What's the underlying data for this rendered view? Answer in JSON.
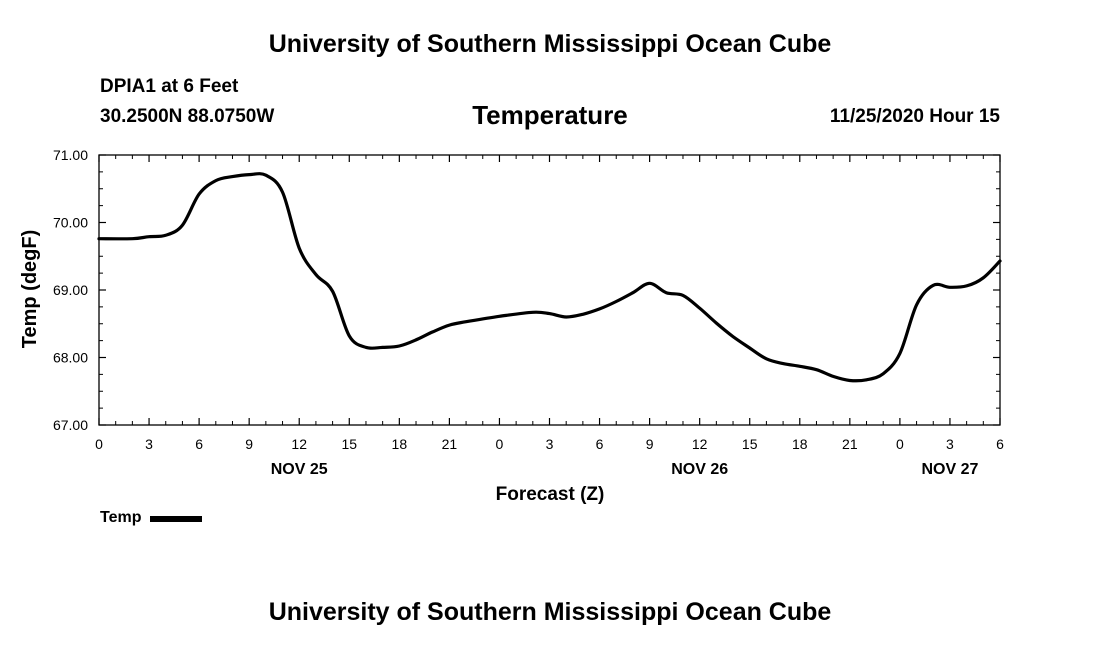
{
  "header": {
    "title": "University of Southern Mississippi Ocean Cube",
    "station": "DPIA1 at 6 Feet",
    "coords": "30.2500N 88.0750W",
    "datetime": "11/25/2020 Hour 15"
  },
  "footer": {
    "title": "University of Southern Mississippi Ocean Cube"
  },
  "legend": {
    "label": "Temp"
  },
  "chart_data": {
    "type": "line",
    "title": "Temperature",
    "xlabel": "Forecast (Z)",
    "ylabel": "Temp (degF)",
    "ylim": [
      67.0,
      71.0
    ],
    "xlim": [
      "2020-11-25T00:00Z",
      "2020-11-27T06:00Z"
    ],
    "y_ticks": [
      "67.00",
      "68.00",
      "69.00",
      "70.00",
      "71.00"
    ],
    "x_tick_labels": [
      "0",
      "3",
      "6",
      "9",
      "12",
      "15",
      "18",
      "21",
      "0",
      "3",
      "6",
      "9",
      "12",
      "15",
      "18",
      "21",
      "0",
      "3",
      "6"
    ],
    "date_labels": [
      {
        "label": "NOV 25",
        "time": "2020-11-25T12:00Z"
      },
      {
        "label": "NOV 26",
        "time": "2020-11-26T12:00Z"
      },
      {
        "label": "NOV 27",
        "time": "2020-11-27T03:00Z"
      }
    ],
    "grid": false,
    "legend_position": "bottom-left",
    "color": "#000000",
    "series": [
      {
        "name": "Temp",
        "x": [
          "2020-11-25T00:00Z",
          "2020-11-25T02:00Z",
          "2020-11-25T03:00Z",
          "2020-11-25T04:00Z",
          "2020-11-25T05:00Z",
          "2020-11-25T06:00Z",
          "2020-11-25T07:00Z",
          "2020-11-25T08:00Z",
          "2020-11-25T09:00Z",
          "2020-11-25T10:00Z",
          "2020-11-25T11:00Z",
          "2020-11-25T12:00Z",
          "2020-11-25T13:00Z",
          "2020-11-25T14:00Z",
          "2020-11-25T15:00Z",
          "2020-11-25T16:00Z",
          "2020-11-25T17:00Z",
          "2020-11-25T18:00Z",
          "2020-11-25T19:00Z",
          "2020-11-25T20:00Z",
          "2020-11-25T21:00Z",
          "2020-11-25T22:00Z",
          "2020-11-26T00:00Z",
          "2020-11-26T02:00Z",
          "2020-11-26T03:00Z",
          "2020-11-26T04:00Z",
          "2020-11-26T05:00Z",
          "2020-11-26T06:00Z",
          "2020-11-26T07:00Z",
          "2020-11-26T08:00Z",
          "2020-11-26T09:00Z",
          "2020-11-26T10:00Z",
          "2020-11-26T11:00Z",
          "2020-11-26T12:00Z",
          "2020-11-26T13:00Z",
          "2020-11-26T14:00Z",
          "2020-11-26T15:00Z",
          "2020-11-26T16:00Z",
          "2020-11-26T17:00Z",
          "2020-11-26T18:00Z",
          "2020-11-26T19:00Z",
          "2020-11-26T20:00Z",
          "2020-11-26T21:00Z",
          "2020-11-26T22:00Z",
          "2020-11-26T23:00Z",
          "2020-11-27T00:00Z",
          "2020-11-27T01:00Z",
          "2020-11-27T02:00Z",
          "2020-11-27T03:00Z",
          "2020-11-27T04:00Z",
          "2020-11-27T05:00Z",
          "2020-11-27T06:00Z"
        ],
        "values": [
          69.76,
          69.76,
          69.79,
          69.81,
          69.96,
          70.42,
          70.62,
          70.68,
          70.71,
          70.7,
          70.45,
          69.62,
          69.23,
          68.98,
          68.32,
          68.15,
          68.15,
          68.17,
          68.26,
          68.38,
          68.48,
          68.53,
          68.61,
          68.67,
          68.65,
          68.6,
          68.64,
          68.72,
          68.83,
          68.96,
          69.1,
          68.96,
          68.92,
          68.73,
          68.51,
          68.31,
          68.14,
          67.98,
          67.91,
          67.87,
          67.82,
          67.72,
          67.66,
          67.67,
          67.76,
          68.06,
          68.78,
          69.07,
          69.04,
          69.06,
          69.18,
          69.43
        ]
      }
    ]
  }
}
